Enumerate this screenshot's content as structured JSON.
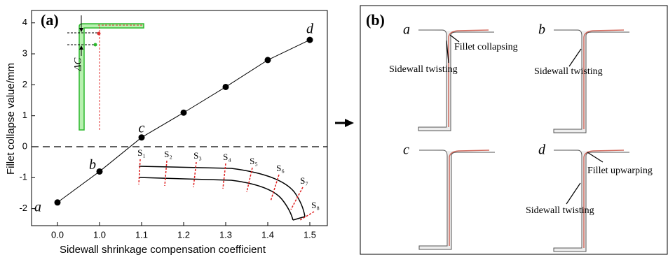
{
  "chart_data": {
    "type": "line",
    "panel_label": "(a)",
    "x_label": "Sidewall shrinkage compensation coefficient",
    "y_label": "Fillet collapse value/mm",
    "categories": [
      "0.0",
      "1.0",
      "1.1",
      "1.2",
      "1.3",
      "1.4",
      "1.5"
    ],
    "values": [
      -1.8,
      -0.8,
      0.3,
      1.1,
      1.93,
      2.8,
      3.45
    ],
    "point_labels": [
      "a",
      "b",
      "c",
      null,
      null,
      null,
      "d"
    ],
    "color": "#000000",
    "ylim": [
      -2.55,
      4.4
    ],
    "yticks": [
      -2,
      -1,
      0,
      1,
      2,
      3,
      4
    ],
    "reference_line": 0,
    "inset_labels": {
      "delta": "ΔC",
      "sections": [
        "S₁",
        "S₂",
        "S₃",
        "S₄",
        "S₅",
        "S₆",
        "S₇",
        "S₈"
      ]
    }
  },
  "panel_b": {
    "panel_label": "(b)",
    "cases": [
      "a",
      "b",
      "c",
      "d"
    ],
    "annotations": [
      "Fillet collapsing",
      "Sidewall twisting",
      "Sidewall twisting",
      "Fillet upwarping",
      "Sidewall twisting"
    ]
  }
}
